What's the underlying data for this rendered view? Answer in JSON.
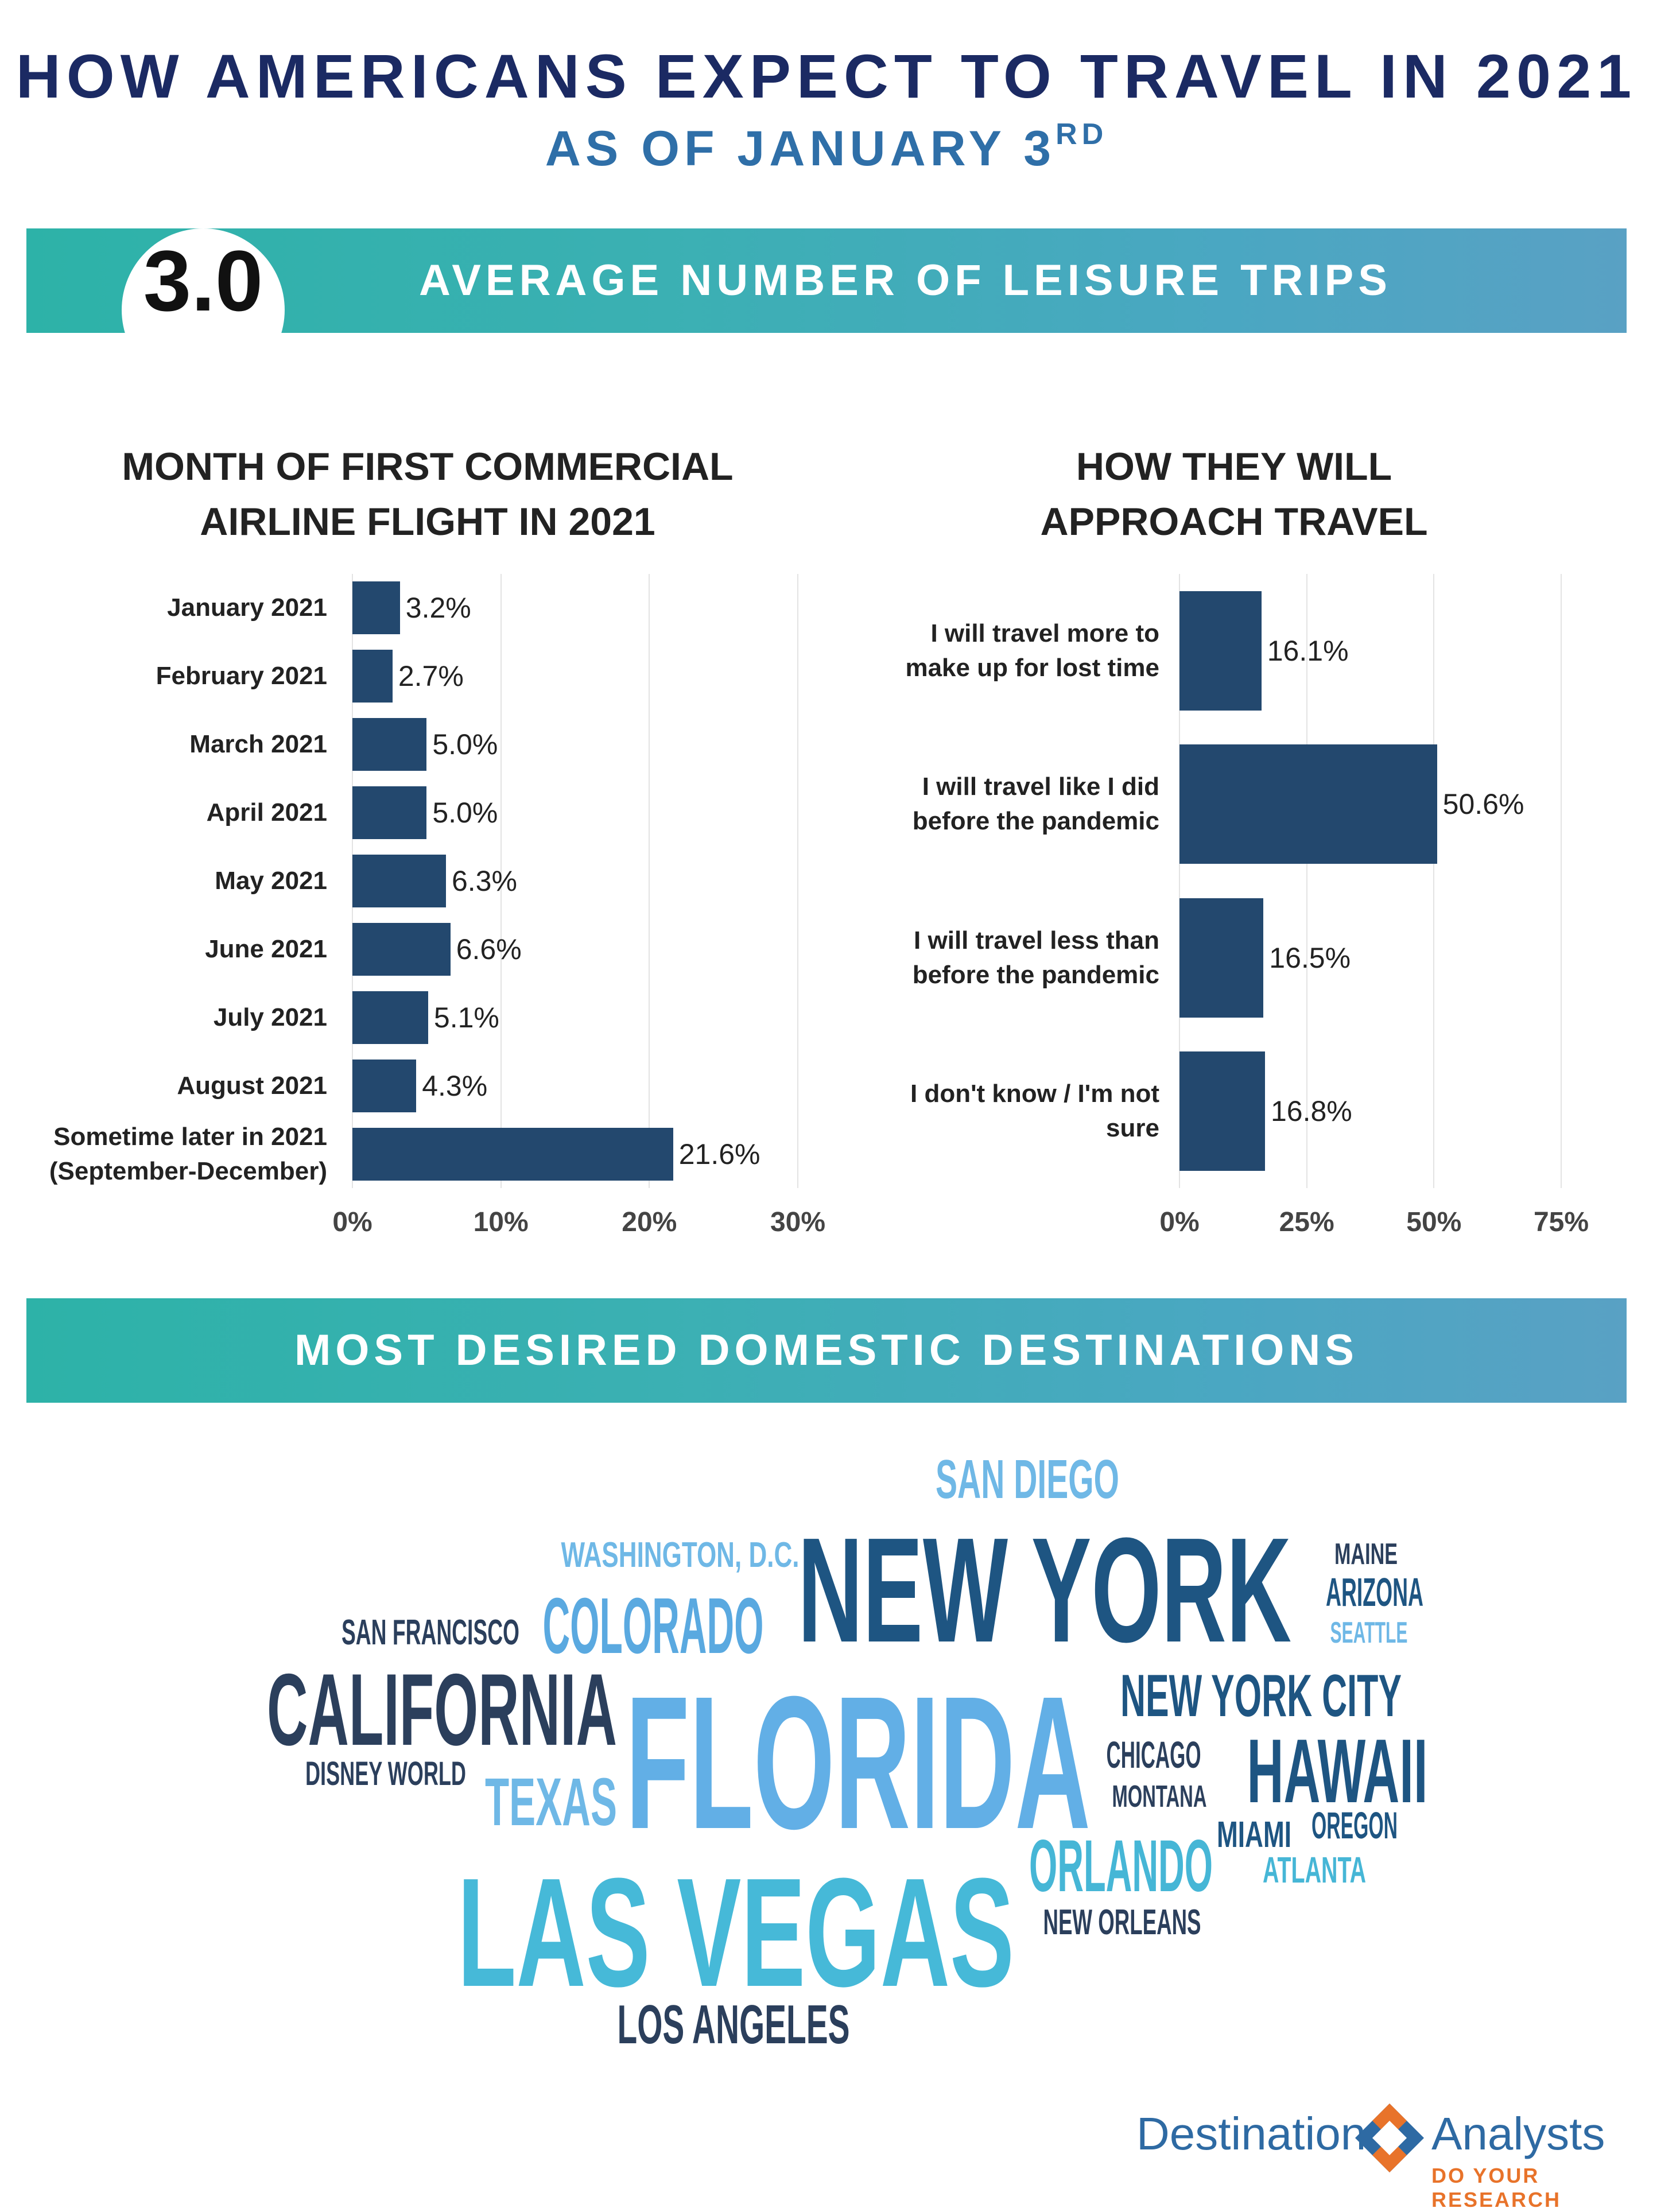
{
  "header": {
    "title": "HOW AMERICANS EXPECT TO TRAVEL IN 2021",
    "subtitle": "AS OF JANUARY 3",
    "subtitle_sup": "RD"
  },
  "stat_banner": {
    "value": "3.0",
    "label": "AVERAGE NUMBER OF LEISURE TRIPS"
  },
  "destinations_banner": {
    "label": "MOST DESIRED DOMESTIC DESTINATIONS"
  },
  "chart_data": [
    {
      "type": "bar",
      "orientation": "horizontal",
      "title_lines": [
        "MONTH OF FIRST COMMERCIAL",
        "AIRLINE FLIGHT IN 2021"
      ],
      "categories": [
        "January 2021",
        "February 2021",
        "March 2021",
        "April 2021",
        "May 2021",
        "June 2021",
        "July 2021",
        "August 2021",
        "Sometime later in 2021\n(September-December)"
      ],
      "values": [
        3.2,
        2.7,
        5.0,
        5.0,
        6.3,
        6.6,
        5.1,
        4.3,
        21.6
      ],
      "value_labels": [
        "3.2%",
        "2.7%",
        "5.0%",
        "5.0%",
        "6.3%",
        "6.6%",
        "5.1%",
        "4.3%",
        "21.6%"
      ],
      "xlim": [
        0,
        30
      ],
      "xticks": [
        "0%",
        "10%",
        "20%",
        "30%"
      ],
      "grid": true,
      "bar_color": "#23486e"
    },
    {
      "type": "bar",
      "orientation": "horizontal",
      "title_lines": [
        "HOW THEY WILL",
        "APPROACH TRAVEL"
      ],
      "categories": [
        "I will travel more to\nmake up for lost time",
        "I will travel like I did\nbefore the pandemic",
        "I will travel less than\nbefore the pandemic",
        "I don't know / I'm not\nsure"
      ],
      "values": [
        16.1,
        50.6,
        16.5,
        16.8
      ],
      "value_labels": [
        "16.1%",
        "50.6%",
        "16.5%",
        "16.8%"
      ],
      "xlim": [
        0,
        75
      ],
      "xticks": [
        "0%",
        "25%",
        "50%",
        "75%"
      ],
      "grid": true,
      "bar_color": "#23486e"
    }
  ],
  "word_cloud": [
    {
      "text": "SAN DIEGO",
      "color": "#6fb8e6"
    },
    {
      "text": "WASHINGTON, D.C.",
      "color": "#6fb8e6"
    },
    {
      "text": "NEW YORK",
      "color": "#1e5582"
    },
    {
      "text": "MAINE",
      "color": "#2b3f5c"
    },
    {
      "text": "ARIZONA",
      "color": "#1e5582"
    },
    {
      "text": "SEATTLE",
      "color": "#6fb8e6"
    },
    {
      "text": "SAN FRANCISCO",
      "color": "#2b3f5c"
    },
    {
      "text": "COLORADO",
      "color": "#5aa9e0"
    },
    {
      "text": "CALIFORNIA",
      "color": "#2b3f5c"
    },
    {
      "text": "FLORIDA",
      "color": "#62afe6"
    },
    {
      "text": "NEW YORK CITY",
      "color": "#1e5582"
    },
    {
      "text": "HAWAII",
      "color": "#1e5582"
    },
    {
      "text": "CHICAGO",
      "color": "#2b3f5c"
    },
    {
      "text": "MONTANA",
      "color": "#2b3f5c"
    },
    {
      "text": "DISNEY WORLD",
      "color": "#2b3f5c"
    },
    {
      "text": "TEXAS",
      "color": "#6fb8e6"
    },
    {
      "text": "MIAMI",
      "color": "#1e5582"
    },
    {
      "text": "OREGON",
      "color": "#1e5582"
    },
    {
      "text": "ORLANDO",
      "color": "#46b6d6"
    },
    {
      "text": "ATLANTA",
      "color": "#46b6d6"
    },
    {
      "text": "LAS VEGAS",
      "color": "#46b9d8"
    },
    {
      "text": "NEW ORLEANS",
      "color": "#2b3f5c"
    },
    {
      "text": "LOS ANGELES",
      "color": "#2b3f5c"
    }
  ],
  "logo": {
    "name_left": "Destination",
    "name_right": "Analysts",
    "tagline": "DO YOUR RESEARCH"
  }
}
